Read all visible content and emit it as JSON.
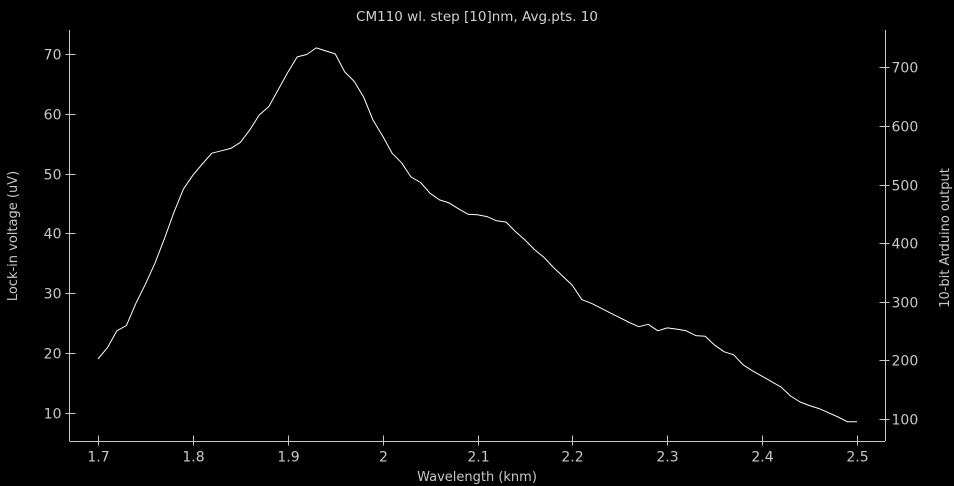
{
  "chart_data": {
    "type": "line",
    "title": "CM110 wl. step [10]nm, Avg.pts. 10",
    "xlabel": "Wavelength (knm)",
    "ylabel": "Lock-in voltage (uV)",
    "y2label": "10-bit Arduino output",
    "xlim": [
      1.67,
      2.53
    ],
    "ylim": [
      5.2,
      74.0
    ],
    "y2lim": [
      61,
      764
    ],
    "xticks": [
      "1.7",
      "1.8",
      "1.9",
      "2",
      "2.1",
      "2.2",
      "2.3",
      "2.4",
      "2.5"
    ],
    "yticks": [
      "10",
      "20",
      "30",
      "40",
      "50",
      "60",
      "70"
    ],
    "y2ticks": [
      "100",
      "200",
      "300",
      "400",
      "500",
      "600",
      "700"
    ],
    "grid": false,
    "series": [
      {
        "color": "#ffffff",
        "x": [
          1.7,
          1.71,
          1.72,
          1.73,
          1.74,
          1.75,
          1.76,
          1.77,
          1.78,
          1.79,
          1.8,
          1.81,
          1.82,
          1.83,
          1.84,
          1.85,
          1.86,
          1.87,
          1.88,
          1.89,
          1.9,
          1.91,
          1.92,
          1.93,
          1.94,
          1.95,
          1.96,
          1.97,
          1.98,
          1.99,
          2.0,
          2.01,
          2.02,
          2.03,
          2.04,
          2.05,
          2.06,
          2.07,
          2.08,
          2.09,
          2.1,
          2.11,
          2.12,
          2.13,
          2.14,
          2.15,
          2.16,
          2.17,
          2.18,
          2.19,
          2.2,
          2.21,
          2.22,
          2.23,
          2.24,
          2.25,
          2.26,
          2.27,
          2.28,
          2.29,
          2.3,
          2.31,
          2.32,
          2.33,
          2.34,
          2.35,
          2.36,
          2.37,
          2.38,
          2.39,
          2.4,
          2.41,
          2.42,
          2.43,
          2.44,
          2.45,
          2.46,
          2.47,
          2.48,
          2.49,
          2.5
        ],
        "values": [
          19.0,
          20.9,
          23.7,
          24.6,
          28.3,
          31.5,
          35.0,
          39.1,
          43.5,
          47.4,
          49.7,
          51.6,
          53.4,
          53.8,
          54.2,
          55.2,
          57.3,
          59.8,
          61.2,
          64.0,
          66.9,
          69.5,
          69.9,
          71.0,
          70.5,
          70.0,
          67.0,
          65.4,
          62.8,
          58.9,
          56.3,
          53.4,
          51.8,
          49.4,
          48.5,
          46.7,
          45.6,
          45.1,
          44.1,
          43.2,
          43.1,
          42.8,
          42.1,
          41.9,
          40.3,
          38.9,
          37.3,
          36.0,
          34.3,
          32.8,
          31.3,
          28.9,
          28.3,
          27.5,
          26.7,
          25.9,
          25.1,
          24.4,
          24.8,
          23.7,
          24.2,
          24.0,
          23.7,
          22.9,
          22.8,
          21.3,
          20.2,
          19.7,
          18.0,
          17.0,
          16.1,
          15.2,
          14.3,
          12.8,
          11.8,
          11.2,
          10.7,
          10.0,
          9.3,
          8.5,
          8.5
        ]
      }
    ]
  }
}
